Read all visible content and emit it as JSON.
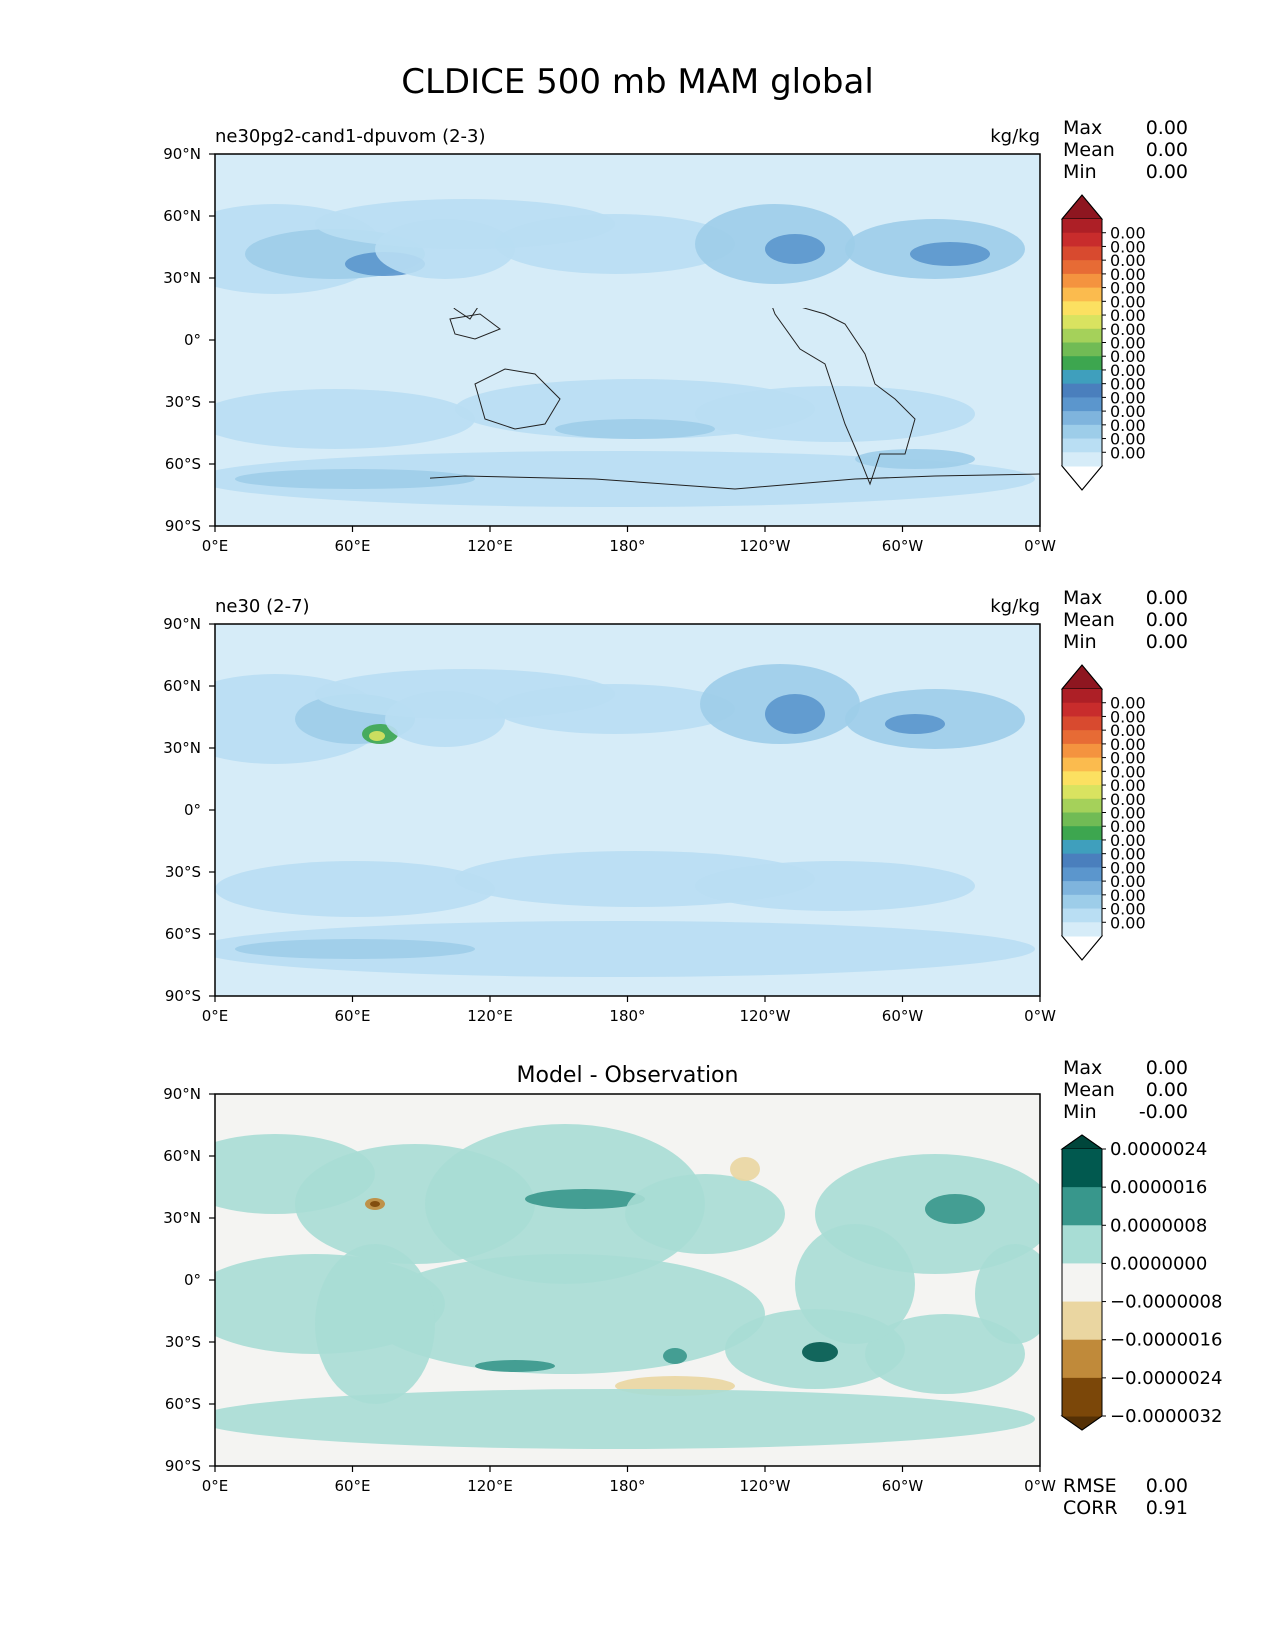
{
  "figure_title": "CLDICE 500 mb MAM global",
  "chart_data": [
    {
      "type": "heatmap",
      "title": "ne30pg2-cand1-dpuvom (2-3)",
      "units": "kg/kg",
      "stats": [
        {
          "label": "Max",
          "value": "0.00"
        },
        {
          "label": "Mean",
          "value": "0.00"
        },
        {
          "label": "Min",
          "value": "0.00"
        }
      ],
      "x_ticks": [
        "0°E",
        "60°E",
        "120°E",
        "180°",
        "120°W",
        "60°W",
        "0°W"
      ],
      "y_ticks": [
        "90°N",
        "60°N",
        "30°N",
        "0°",
        "30°S",
        "60°S",
        "90°S"
      ],
      "xlim": [
        0,
        360
      ],
      "ylim": [
        -90,
        90
      ],
      "colorbar": {
        "extend": "both",
        "tick_labels": [
          "0.00",
          "0.00",
          "0.00",
          "0.00",
          "0.00",
          "0.00",
          "0.00",
          "0.00",
          "0.00",
          "0.00",
          "0.00",
          "0.00",
          "0.00",
          "0.00",
          "0.00",
          "0.00",
          "0.00"
        ],
        "colors": [
          "#ffffff",
          "#d6ecf8",
          "#b9def3",
          "#9dcde9",
          "#7fb4dd",
          "#5b96cd",
          "#4a7fbd",
          "#3f9fbd",
          "#3da64f",
          "#71bb55",
          "#a5d15a",
          "#d9e360",
          "#fce061",
          "#fbbb4e",
          "#f4933f",
          "#e76b35",
          "#d84a2f",
          "#c82c2c",
          "#ad1f26",
          "#8e1620"
        ]
      }
    },
    {
      "type": "heatmap",
      "title": "ne30 (2-7)",
      "units": "kg/kg",
      "stats": [
        {
          "label": "Max",
          "value": "0.00"
        },
        {
          "label": "Mean",
          "value": "0.00"
        },
        {
          "label": "Min",
          "value": "0.00"
        }
      ],
      "x_ticks": [
        "0°E",
        "60°E",
        "120°E",
        "180°",
        "120°W",
        "60°W",
        "0°W"
      ],
      "y_ticks": [
        "90°N",
        "60°N",
        "30°N",
        "0°",
        "30°S",
        "60°S",
        "90°S"
      ],
      "xlim": [
        0,
        360
      ],
      "ylim": [
        -90,
        90
      ],
      "colorbar": {
        "extend": "both",
        "tick_labels": [
          "0.00",
          "0.00",
          "0.00",
          "0.00",
          "0.00",
          "0.00",
          "0.00",
          "0.00",
          "0.00",
          "0.00",
          "0.00",
          "0.00",
          "0.00",
          "0.00",
          "0.00",
          "0.00",
          "0.00"
        ],
        "colors": [
          "#ffffff",
          "#d6ecf8",
          "#b9def3",
          "#9dcde9",
          "#7fb4dd",
          "#5b96cd",
          "#4a7fbd",
          "#3f9fbd",
          "#3da64f",
          "#71bb55",
          "#a5d15a",
          "#d9e360",
          "#fce061",
          "#fbbb4e",
          "#f4933f",
          "#e76b35",
          "#d84a2f",
          "#c82c2c",
          "#ad1f26",
          "#8e1620"
        ]
      }
    },
    {
      "type": "heatmap",
      "title": "Model - Observation",
      "units": "",
      "stats": [
        {
          "label": "Max",
          "value": "0.00"
        },
        {
          "label": "Mean",
          "value": "0.00"
        },
        {
          "label": "Min",
          "value": "-0.00"
        }
      ],
      "x_ticks": [
        "0°E",
        "60°E",
        "120°E",
        "180°",
        "120°W",
        "60°W",
        "0°W"
      ],
      "y_ticks": [
        "90°N",
        "60°N",
        "30°N",
        "0°",
        "30°S",
        "60°S",
        "90°S"
      ],
      "xlim": [
        0,
        360
      ],
      "ylim": [
        -90,
        90
      ],
      "colorbar": {
        "extend": "both",
        "tick_labels": [
          "0.0000024",
          "0.0000016",
          "0.0000008",
          "0.0000000",
          "−0.0000008",
          "−0.0000016",
          "−0.0000024",
          "−0.0000032"
        ],
        "colors": [
          "#00463b",
          "#01594f",
          "#38978c",
          "#a8ddd5",
          "#f4f4f2",
          "#ead6a1",
          "#c08a3a",
          "#7b4709",
          "#543005"
        ]
      },
      "metrics": [
        {
          "label": "RMSE",
          "value": "0.00"
        },
        {
          "label": "CORR",
          "value": "0.91"
        }
      ]
    }
  ]
}
